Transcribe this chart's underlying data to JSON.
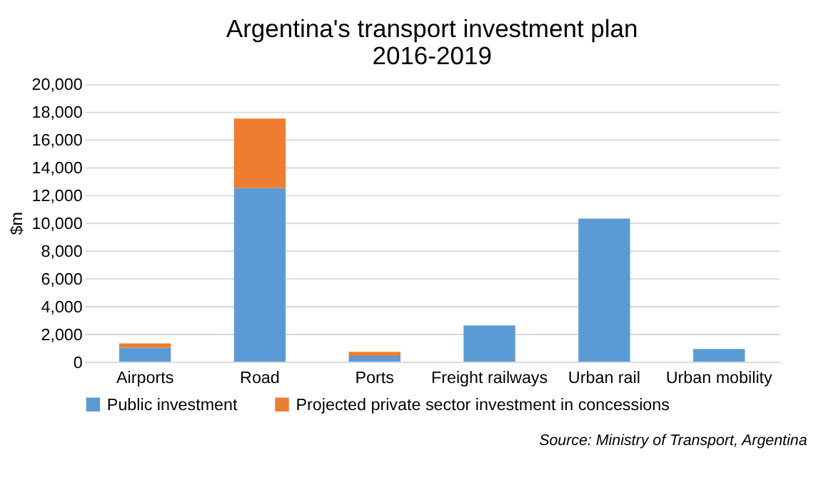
{
  "chart_data": {
    "type": "bar",
    "title": "Argentina's transport investment plan\n2016-2019",
    "ylabel": "$m",
    "categories": [
      "Airports",
      "Road",
      "Ports",
      "Freight railways",
      "Urban rail",
      "Urban mobility"
    ],
    "stacked": true,
    "series": [
      {
        "name": "Public investment",
        "color": "#5b9bd5",
        "values": [
          1000,
          12500,
          400,
          2600,
          10300,
          900
        ]
      },
      {
        "name": "Projected private sector investment in concessions",
        "color": "#ed7d31",
        "values": [
          300,
          5000,
          300,
          0,
          0,
          0
        ]
      }
    ],
    "ylim": [
      0,
      20000
    ],
    "yticks": [
      0,
      {
        "value": 2000,
        "label": "2,000"
      },
      {
        "value": 4000,
        "label": "4,000"
      },
      {
        "value": 6000,
        "label": "6,000"
      },
      {
        "value": 8000,
        "label": "8,000"
      },
      {
        "value": 10000,
        "label": "10,000"
      },
      {
        "value": 12000,
        "label": "12,000"
      },
      {
        "value": 14000,
        "label": "14,000"
      },
      {
        "value": 16000,
        "label": "16,000"
      },
      {
        "value": 18000,
        "label": "18,000"
      },
      {
        "value": 20000,
        "label": "20,000"
      }
    ],
    "grid": "y",
    "legend": "bottom",
    "annotations": [
      "Source: Ministry of Transport, Argentina"
    ]
  }
}
